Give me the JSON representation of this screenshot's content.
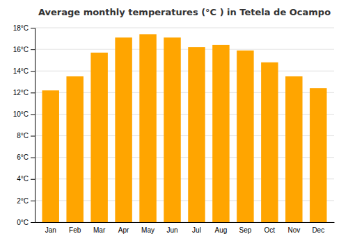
{
  "chart_data": {
    "type": "bar",
    "title": "Average monthly temperatures (°C ) in Tetela de Ocampo",
    "categories": [
      "Jan",
      "Feb",
      "Mar",
      "Apr",
      "May",
      "Jun",
      "Jul",
      "Aug",
      "Sep",
      "Oct",
      "Nov",
      "Dec"
    ],
    "values": [
      12.2,
      13.5,
      15.7,
      17.1,
      17.4,
      17.1,
      16.2,
      16.4,
      15.9,
      14.8,
      13.5,
      12.4
    ],
    "color": "#FFA500",
    "ylim": [
      0,
      18
    ],
    "yticks": [
      {
        "value": 0,
        "label": "0°C"
      },
      {
        "value": 2,
        "label": "2°C"
      },
      {
        "value": 4,
        "label": "4°C"
      },
      {
        "value": 6,
        "label": "6°C"
      },
      {
        "value": 8,
        "label": "8°C"
      },
      {
        "value": 10,
        "label": "10°C"
      },
      {
        "value": 12,
        "label": "12°C"
      },
      {
        "value": 14,
        "label": "14°C"
      },
      {
        "value": 16,
        "label": "16°C"
      },
      {
        "value": 18,
        "label": "18°C"
      }
    ],
    "grid": true
  }
}
